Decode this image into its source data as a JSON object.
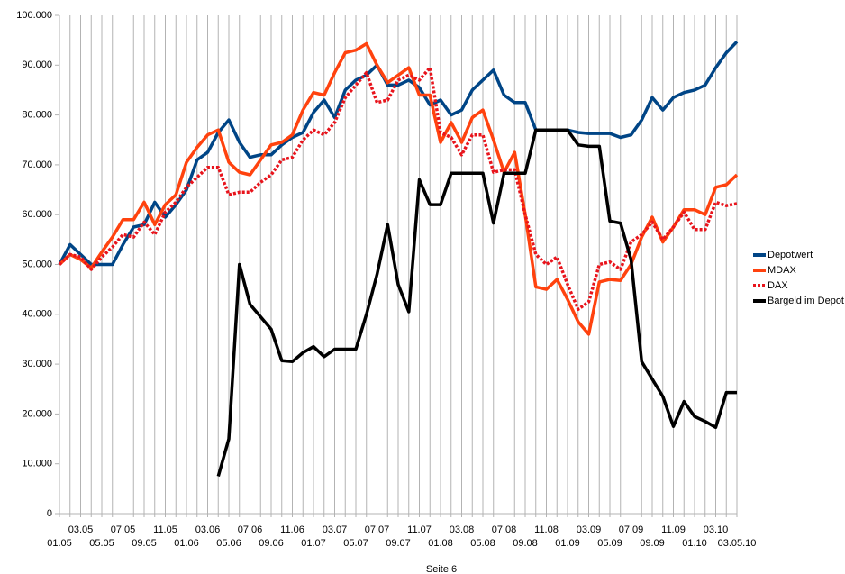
{
  "chart_data": {
    "type": "line",
    "categories": [
      "01.05",
      null,
      "03.05",
      null,
      "05.05",
      null,
      "07.05",
      null,
      "09.05",
      null,
      "11.05",
      null,
      "01.06",
      null,
      "03.06",
      null,
      "05.06",
      null,
      "07.06",
      null,
      "09.06",
      null,
      "11.06",
      null,
      "01.07",
      null,
      "03.07",
      null,
      "05.07",
      null,
      "07.07",
      null,
      "09.07",
      null,
      "11.07",
      null,
      "01.08",
      null,
      "03.08",
      null,
      "05.08",
      null,
      "07.08",
      null,
      "09.08",
      null,
      "11.08",
      null,
      "01.09",
      null,
      "03.09",
      null,
      "05.09",
      null,
      "07.09",
      null,
      "09.09",
      null,
      "11.09",
      null,
      "01.10",
      null,
      "03.10",
      null,
      "03.05.10"
    ],
    "series": [
      {
        "name": "Depotwert",
        "color": "#004586",
        "dash": false,
        "values": [
          50000,
          54000,
          52000,
          50000,
          50000,
          50000,
          54000,
          57500,
          58000,
          62500,
          59500,
          62000,
          65000,
          71000,
          72500,
          76500,
          79000,
          74500,
          71500,
          72000,
          72000,
          74000,
          75500,
          76500,
          80500,
          83000,
          79500,
          85000,
          87000,
          88000,
          90000,
          86000,
          86000,
          87000,
          85500,
          82000,
          83000,
          80000,
          81000,
          85000,
          87000,
          89000,
          84000,
          82500,
          82500,
          77000,
          77000,
          77000,
          77000,
          76500,
          76300,
          76300,
          76300,
          75500,
          76000,
          79000,
          83500,
          81000,
          83500,
          84500,
          85000,
          86000,
          89500,
          92500,
          94700
        ]
      },
      {
        "name": "MDAX",
        "color": "#ff420e",
        "dash": false,
        "values": [
          50000,
          52000,
          51000,
          49300,
          52500,
          55500,
          59000,
          59000,
          62500,
          58000,
          62000,
          64000,
          70500,
          73500,
          76000,
          77000,
          70500,
          68500,
          68000,
          71000,
          74000,
          74500,
          76000,
          81000,
          84500,
          84000,
          88500,
          92500,
          93000,
          94300,
          90000,
          86500,
          88000,
          89500,
          84000,
          84000,
          74500,
          78500,
          74500,
          79500,
          81000,
          75000,
          68500,
          72500,
          60000,
          45500,
          45000,
          47000,
          43000,
          38500,
          36000,
          46500,
          47000,
          46800,
          50000,
          55500,
          59500,
          54500,
          57500,
          61000,
          61000,
          60000,
          65500,
          66000,
          68000
        ]
      },
      {
        "name": "DAX",
        "color": "#e8141c",
        "dash": true,
        "values": [
          50000,
          52000,
          51500,
          49000,
          51500,
          53500,
          56000,
          55500,
          58500,
          56000,
          60500,
          62500,
          65500,
          67500,
          69500,
          69500,
          64000,
          64500,
          64500,
          66500,
          68000,
          71000,
          71500,
          75000,
          77000,
          76000,
          78500,
          83500,
          86000,
          88500,
          82500,
          83000,
          87000,
          88000,
          87000,
          89500,
          76500,
          75500,
          72000,
          76000,
          76000,
          68500,
          69000,
          69000,
          60000,
          52000,
          50000,
          51500,
          46000,
          41000,
          42500,
          50000,
          50500,
          49000,
          54500,
          56000,
          58500,
          55000,
          57500,
          60500,
          57000,
          57000,
          62500,
          61800,
          62200
        ]
      },
      {
        "name": "Bargeld im Depot",
        "color": "#000000",
        "dash": false,
        "values": [
          null,
          null,
          null,
          null,
          null,
          null,
          null,
          null,
          null,
          null,
          null,
          null,
          null,
          null,
          null,
          7500,
          15000,
          50000,
          42000,
          39500,
          37000,
          30700,
          30500,
          32300,
          33500,
          31500,
          33000,
          33000,
          33000,
          40000,
          48000,
          58000,
          46000,
          40500,
          67000,
          62000,
          62000,
          68300,
          68300,
          68300,
          68300,
          58300,
          68300,
          68300,
          68300,
          77000,
          77000,
          77000,
          77000,
          74000,
          73700,
          73700,
          58700,
          58300,
          51000,
          30500,
          27000,
          23500,
          17500,
          22500,
          19500,
          18500,
          17300,
          24300,
          24300
        ]
      }
    ],
    "ylim": [
      0,
      100000
    ],
    "yticks": [
      0,
      {
        "value": 10000,
        "label": "10.000"
      },
      {
        "value": 20000,
        "label": "20.000"
      },
      {
        "value": 30000,
        "label": "30.000"
      },
      {
        "value": 40000,
        "label": "40.000"
      },
      {
        "value": 50000,
        "label": "50.000"
      },
      {
        "value": 60000,
        "label": "60.000"
      },
      {
        "value": 70000,
        "label": "70.000"
      },
      {
        "value": 80000,
        "label": "80.000"
      },
      {
        "value": 90000,
        "label": "90.000"
      },
      {
        "value": 100000,
        "label": "100.000"
      }
    ],
    "grid": "vertical",
    "legend": "right"
  },
  "footer": "Seite 6"
}
